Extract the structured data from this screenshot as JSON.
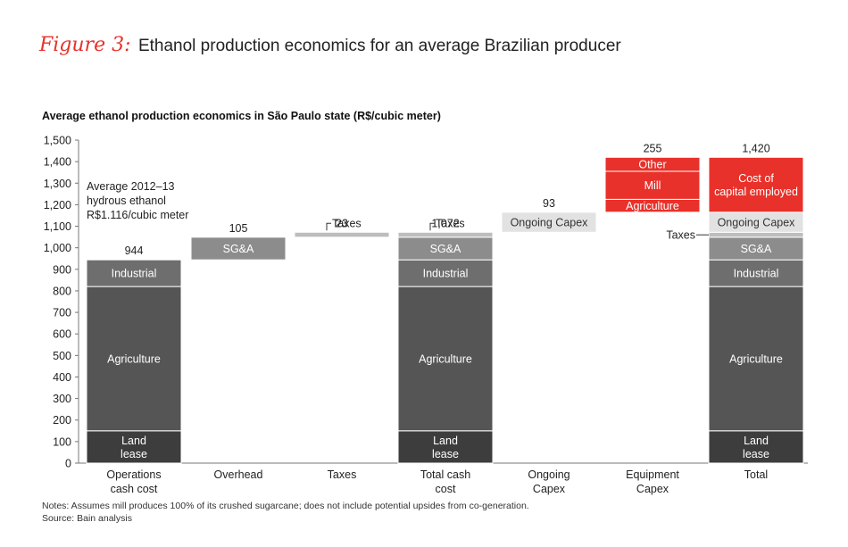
{
  "figure": {
    "tag": "Figure 3:",
    "title": "Ethanol production economics for an average Brazilian producer"
  },
  "chart_data": {
    "type": "bar",
    "subtitle": "Average ethanol production economics in São Paulo state (R$/cubic meter)",
    "ylim": [
      0,
      1500
    ],
    "yticks": [
      0,
      100,
      200,
      300,
      400,
      500,
      600,
      700,
      800,
      900,
      1000,
      1100,
      1200,
      1300,
      1400,
      1500
    ],
    "ytick_labels": [
      "0",
      "100",
      "200",
      "300",
      "400",
      "500",
      "600",
      "700",
      "800",
      "900",
      "1,000",
      "1,100",
      "1,200",
      "1,300",
      "1,400",
      "1,500"
    ],
    "grid": false,
    "categories": [
      [
        "Operations",
        "cash cost"
      ],
      [
        "Overhead"
      ],
      [
        "Taxes"
      ],
      [
        "Total cash",
        "cost"
      ],
      [
        "Ongoing",
        "Capex"
      ],
      [
        "Equipment",
        "Capex"
      ],
      [
        "Total"
      ]
    ],
    "totals": [
      "944",
      "105",
      "23",
      "1,072",
      "93",
      "255",
      "1,420"
    ],
    "segments": [
      [
        {
          "name": "Land lease",
          "label": [
            "Land",
            "lease"
          ],
          "y0": 0,
          "y1": 150,
          "color": "#3d3d3d"
        },
        {
          "name": "Agriculture",
          "label": [
            "Agriculture"
          ],
          "y0": 150,
          "y1": 820,
          "color": "#555555"
        },
        {
          "name": "Industrial",
          "label": [
            "Industrial"
          ],
          "y0": 820,
          "y1": 944,
          "color": "#6e6e6e"
        }
      ],
      [
        {
          "name": "SG&A",
          "label": [
            "SG&A"
          ],
          "y0": 944,
          "y1": 1049,
          "color": "#8c8c8c"
        }
      ],
      [
        {
          "name": "Taxes",
          "label": [],
          "y0": 1049,
          "y1": 1072,
          "color": "#bdbdbd"
        }
      ],
      [
        {
          "name": "Land lease",
          "label": [
            "Land",
            "lease"
          ],
          "y0": 0,
          "y1": 150,
          "color": "#3d3d3d"
        },
        {
          "name": "Agriculture",
          "label": [
            "Agriculture"
          ],
          "y0": 150,
          "y1": 820,
          "color": "#555555"
        },
        {
          "name": "Industrial",
          "label": [
            "Industrial"
          ],
          "y0": 820,
          "y1": 944,
          "color": "#6e6e6e"
        },
        {
          "name": "SG&A",
          "label": [
            "SG&A"
          ],
          "y0": 944,
          "y1": 1049,
          "color": "#8c8c8c"
        },
        {
          "name": "Taxes",
          "label": [],
          "y0": 1049,
          "y1": 1072,
          "color": "#bdbdbd"
        }
      ],
      [
        {
          "name": "Ongoing Capex",
          "label": [
            "Ongoing Capex"
          ],
          "y0": 1072,
          "y1": 1165,
          "color": "#e2e2e2"
        }
      ],
      [
        {
          "name": "Agriculture",
          "label": [
            "Agriculture"
          ],
          "y0": 1165,
          "y1": 1225,
          "color": "#e8312a"
        },
        {
          "name": "Mill",
          "label": [
            "Mill"
          ],
          "y0": 1225,
          "y1": 1355,
          "color": "#e8312a"
        },
        {
          "name": "Other",
          "label": [
            "Other"
          ],
          "y0": 1355,
          "y1": 1420,
          "color": "#e8312a"
        }
      ],
      [
        {
          "name": "Land lease",
          "label": [
            "Land",
            "lease"
          ],
          "y0": 0,
          "y1": 150,
          "color": "#3d3d3d"
        },
        {
          "name": "Agriculture",
          "label": [
            "Agriculture"
          ],
          "y0": 150,
          "y1": 820,
          "color": "#555555"
        },
        {
          "name": "Industrial",
          "label": [
            "Industrial"
          ],
          "y0": 820,
          "y1": 944,
          "color": "#6e6e6e"
        },
        {
          "name": "SG&A",
          "label": [
            "SG&A"
          ],
          "y0": 944,
          "y1": 1049,
          "color": "#8c8c8c"
        },
        {
          "name": "Taxes",
          "label": [],
          "y0": 1049,
          "y1": 1072,
          "color": "#bdbdbd"
        },
        {
          "name": "Ongoing Capex",
          "label": [
            "Ongoing Capex"
          ],
          "y0": 1072,
          "y1": 1165,
          "color": "#e2e2e2"
        },
        {
          "name": "Cost of capital employed",
          "label": [
            "Cost of",
            "capital employed"
          ],
          "y0": 1165,
          "y1": 1420,
          "color": "#e8312a"
        }
      ]
    ],
    "annotations": {
      "average_price": [
        "Average 2012–13",
        "hydrous ethanol",
        "R$1.116/cubic meter"
      ],
      "taxes_label": "Taxes"
    },
    "notes": [
      "Notes: Assumes mill produces 100% of its crushed sugarcane; does not include potential upsides from co-generation.",
      "Source: Bain analysis"
    ]
  }
}
